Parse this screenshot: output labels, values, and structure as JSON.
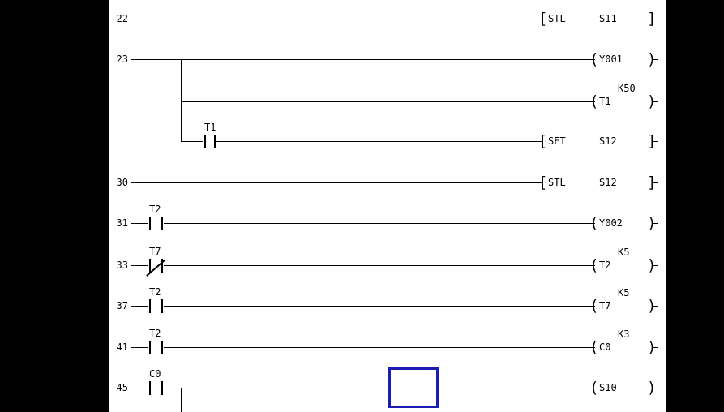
{
  "app": {
    "type": "plc-ladder-editor",
    "view": "ladder-diagram"
  },
  "colors": {
    "background": "#000000",
    "panel": "#ffffff",
    "line": "#000000",
    "text": "#000000",
    "cursor_border": "#1c1cb4"
  },
  "symbols": {
    "open_bracket": "[",
    "close_bracket": "]",
    "open_paren": "(",
    "close_paren": ")"
  },
  "rungs": [
    {
      "step": "22",
      "line_start": "rail",
      "output": {
        "type": "instruction",
        "op": "STL",
        "device": "S11"
      }
    },
    {
      "step": "23",
      "line_start": "rail",
      "output": {
        "type": "coil",
        "device": "Y001"
      }
    },
    {
      "step": "",
      "line_start": "branch",
      "output": {
        "type": "coil",
        "device": "T1",
        "constant": "K50"
      }
    },
    {
      "step": "",
      "line_start": "branch",
      "contact": {
        "device": "T1",
        "type": "no",
        "position": "branch"
      },
      "output": {
        "type": "instruction",
        "op": "SET",
        "device": "S12"
      }
    },
    {
      "step": "30",
      "line_start": "rail",
      "output": {
        "type": "instruction",
        "op": "STL",
        "device": "S12"
      }
    },
    {
      "step": "31",
      "line_start": "rail",
      "contact": {
        "device": "T2",
        "type": "no",
        "position": "main"
      },
      "output": {
        "type": "coil",
        "device": "Y002"
      }
    },
    {
      "step": "33",
      "line_start": "rail",
      "contact": {
        "device": "T7",
        "type": "nc",
        "position": "main"
      },
      "output": {
        "type": "coil",
        "device": "T2",
        "constant": "K5"
      }
    },
    {
      "step": "37",
      "line_start": "rail",
      "contact": {
        "device": "T2",
        "type": "no",
        "position": "main"
      },
      "output": {
        "type": "coil",
        "device": "T7",
        "constant": "K5"
      }
    },
    {
      "step": "41",
      "line_start": "rail",
      "contact": {
        "device": "T2",
        "type": "no",
        "position": "main"
      },
      "output": {
        "type": "coil",
        "device": "C0",
        "constant": "K3"
      }
    },
    {
      "step": "45",
      "line_start": "rail",
      "contact": {
        "device": "C0",
        "type": "no",
        "position": "main"
      },
      "output": {
        "type": "coil",
        "device": "S10"
      }
    }
  ],
  "branches": [
    {
      "from_rung_index": 1,
      "to_rung_index": 3
    },
    {
      "from_rung_index": 9,
      "to": "bottom"
    }
  ],
  "cursor": {
    "rung_index": 9,
    "visible": true
  }
}
